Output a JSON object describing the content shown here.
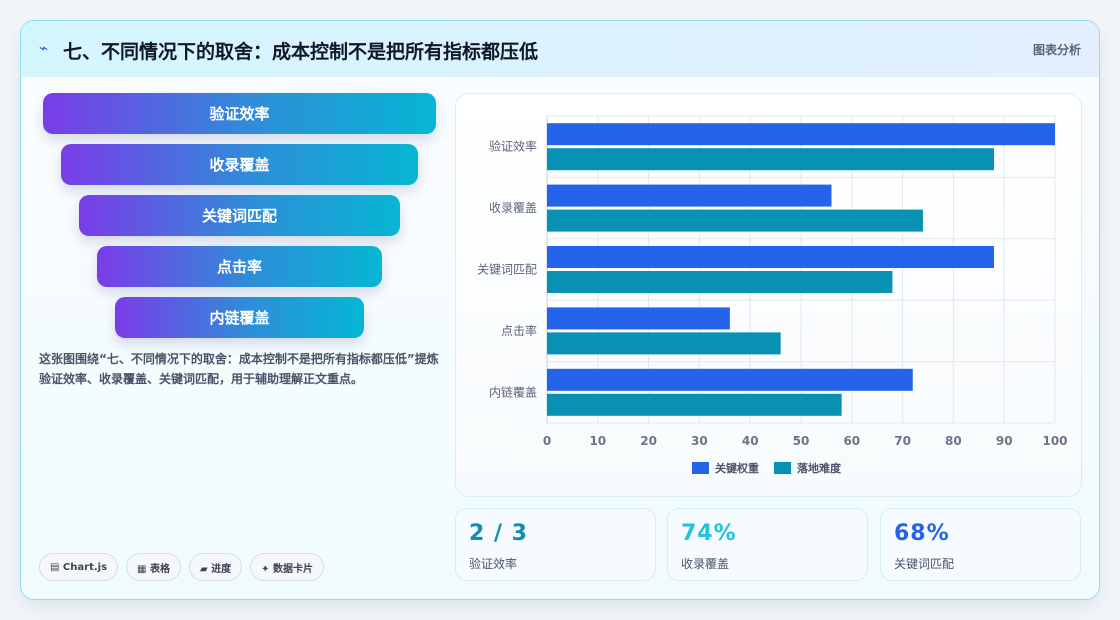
{
  "header": {
    "icon": "sparkle-icon",
    "title": "七、不同情况下的取舍：成本控制不是把所有指标都压低",
    "tag": "图表分析"
  },
  "funnel": [
    "验证效率",
    "收录覆盖",
    "关键词匹配",
    "点击率",
    "内链覆盖"
  ],
  "description": "这张图围绕“七、不同情况下的取舍：成本控制不是把所有指标都压低”提炼验证效率、收录覆盖、关键词匹配，用于辅助理解正文重点。",
  "chips": [
    "▤ Chart.js",
    "▦ 表格",
    "▰ 进度",
    "✦ 数据卡片"
  ],
  "stats": [
    {
      "value": "2 / 3",
      "label": "验证效率",
      "color": "#0e8fb0"
    },
    {
      "value": "74%",
      "label": "收录覆盖",
      "color": "#22c3dd"
    },
    {
      "value": "68%",
      "label": "关键词匹配",
      "color": "#2563eb"
    }
  ],
  "chart_data": {
    "type": "bar",
    "orientation": "horizontal",
    "categories": [
      "验证效率",
      "收录覆盖",
      "关键词匹配",
      "点击率",
      "内链覆盖"
    ],
    "series": [
      {
        "name": "关键权重",
        "values": [
          100,
          56,
          88,
          36,
          72
        ],
        "color": "#2563eb"
      },
      {
        "name": "落地难度",
        "values": [
          88,
          74,
          68,
          46,
          58
        ],
        "color": "#0891b2"
      }
    ],
    "xlim": [
      0,
      100
    ],
    "xticks": [
      0,
      10,
      20,
      30,
      40,
      50,
      60,
      70,
      80,
      90,
      100
    ],
    "grid": true,
    "legend": "bottom"
  }
}
